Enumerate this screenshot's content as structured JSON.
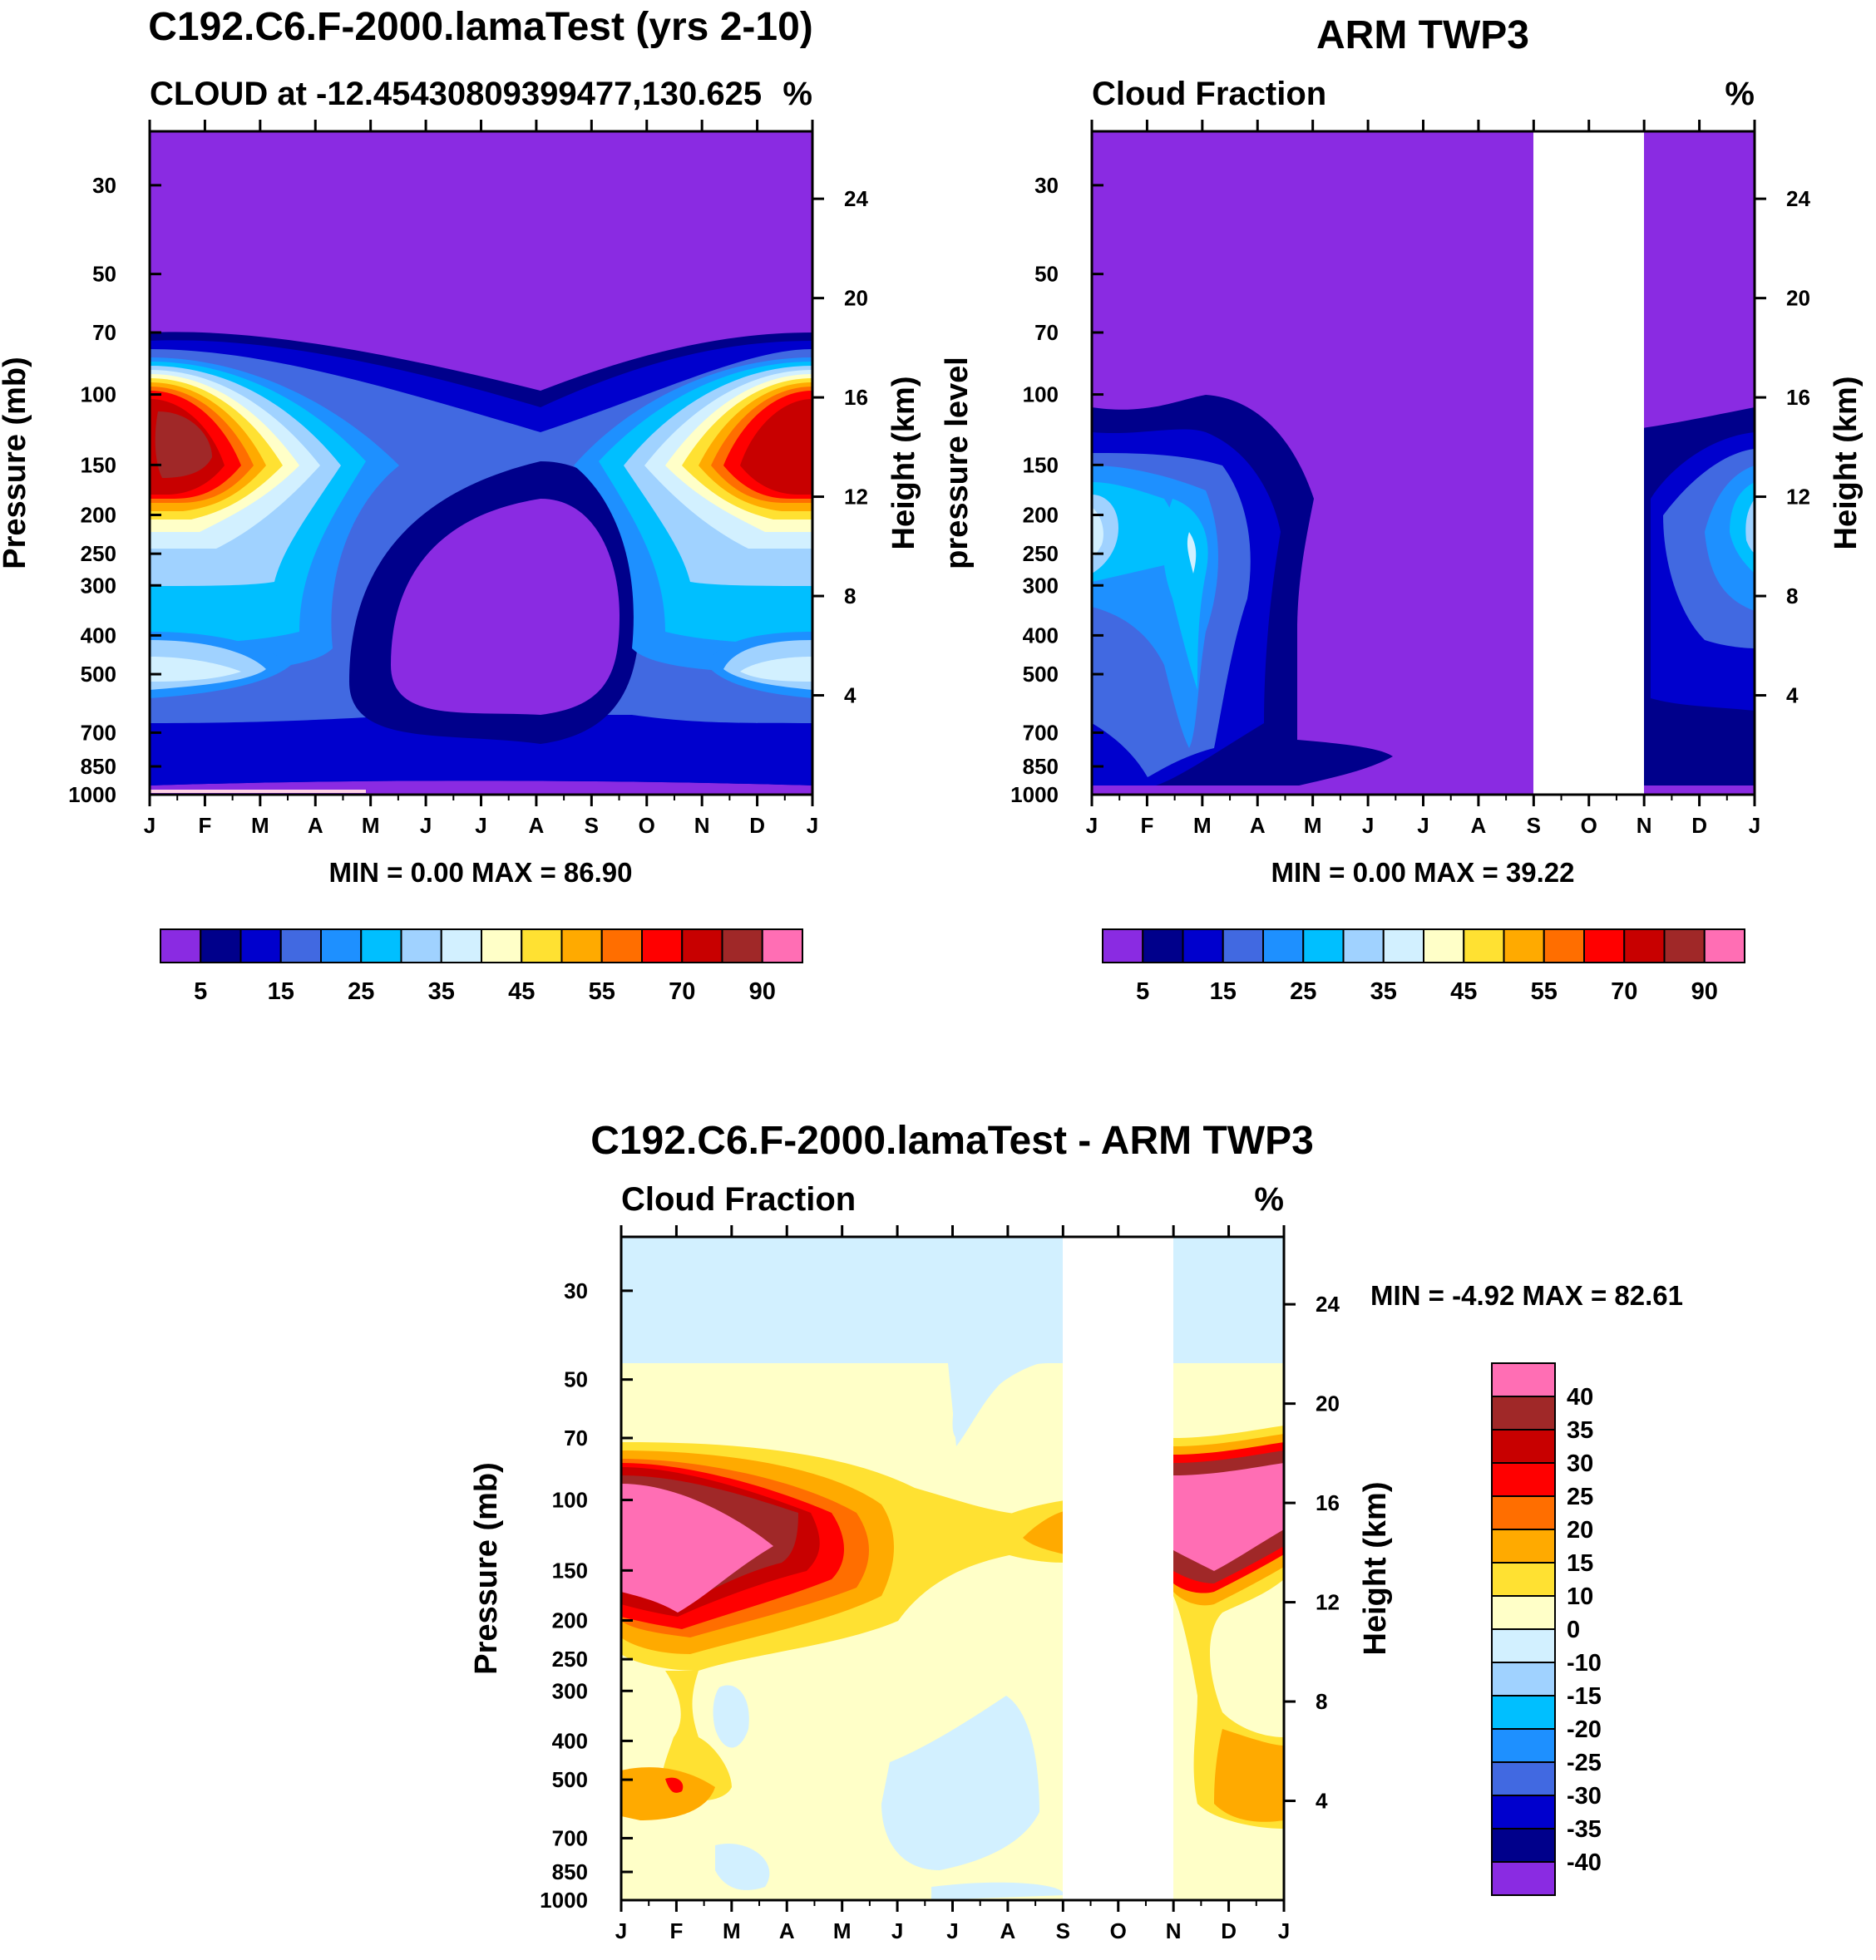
{
  "chart_data": [
    {
      "type": "heatmap",
      "title": "C192.C6.F-2000.lamaTest (yrs 2-10)",
      "subtitle_left": "CLOUD at -12.45430809399477,130.625",
      "subtitle_right": "%",
      "xlabel": "",
      "ylabel": "Pressure (mb)",
      "ylabel_right": "Height (km)",
      "x_ticks": [
        "J",
        "F",
        "M",
        "A",
        "M",
        "J",
        "J",
        "A",
        "S",
        "O",
        "N",
        "D",
        "J"
      ],
      "y_ticks": [
        "30",
        "50",
        "70",
        "100",
        "150",
        "200",
        "250",
        "300",
        "400",
        "500",
        "700",
        "850",
        "1000"
      ],
      "y_ticks_right": [
        "24",
        "20",
        "16",
        "12",
        "8",
        "4"
      ],
      "stats": "MIN =   0.00 MAX =  86.90",
      "colorbar_labels": [
        "5",
        "15",
        "25",
        "35",
        "45",
        "55",
        "70",
        "90"
      ],
      "colors": [
        "#8a2be2",
        "#00008b",
        "#0000cd",
        "#4169e1",
        "#1e90ff",
        "#00bfff",
        "#a0d2ff",
        "#d2f0ff",
        "#ffffc8",
        "#ffe132",
        "#ffaa00",
        "#ff6e00",
        "#ff0000",
        "#c80000",
        "#a02828",
        "#ff6eb4"
      ],
      "min": 0.0,
      "max": 86.9
    },
    {
      "type": "heatmap",
      "title": "ARM TWP3",
      "subtitle_left": "Cloud Fraction",
      "subtitle_right": "%",
      "ylabel": "pressure level",
      "ylabel_right": "Height (km)",
      "x_ticks": [
        "J",
        "F",
        "M",
        "A",
        "M",
        "J",
        "J",
        "A",
        "S",
        "O",
        "N",
        "D",
        "J"
      ],
      "y_ticks": [
        "30",
        "50",
        "70",
        "100",
        "150",
        "200",
        "250",
        "300",
        "400",
        "500",
        "700",
        "850",
        "1000"
      ],
      "y_ticks_right": [
        "24",
        "20",
        "16",
        "12",
        "8",
        "4"
      ],
      "stats": "MIN =   0.00 MAX =  39.22",
      "colorbar_labels": [
        "5",
        "15",
        "25",
        "35",
        "45",
        "55",
        "70",
        "90"
      ],
      "min": 0.0,
      "max": 39.22,
      "missing_months": [
        "S",
        "O"
      ]
    },
    {
      "type": "heatmap",
      "title": "C192.C6.F-2000.lamaTest - ARM TWP3",
      "subtitle_left": "Cloud Fraction",
      "subtitle_right": "%",
      "ylabel": "Pressure (mb)",
      "ylabel_right": "Height (km)",
      "x_ticks": [
        "J",
        "F",
        "M",
        "A",
        "M",
        "J",
        "J",
        "A",
        "S",
        "O",
        "N",
        "D",
        "J"
      ],
      "y_ticks": [
        "30",
        "50",
        "70",
        "100",
        "150",
        "200",
        "250",
        "300",
        "400",
        "500",
        "700",
        "850",
        "1000"
      ],
      "y_ticks_right": [
        "24",
        "20",
        "16",
        "12",
        "8",
        "4"
      ],
      "stats": "MIN =  -4.92 MAX =  82.61",
      "colorbar_labels": [
        "40",
        "35",
        "30",
        "25",
        "20",
        "15",
        "10",
        "0",
        "-10",
        "-15",
        "-20",
        "-25",
        "-30",
        "-35",
        "-40"
      ],
      "colors": [
        "#ff6eb4",
        "#a02828",
        "#c80000",
        "#ff0000",
        "#ff6e00",
        "#ffaa00",
        "#ffe132",
        "#ffffc8",
        "#d2f0ff",
        "#a0d2ff",
        "#00bfff",
        "#1e90ff",
        "#4169e1",
        "#0000cd",
        "#00008b",
        "#8a2be2"
      ],
      "min": -4.92,
      "max": 82.61,
      "missing_months": [
        "S",
        "O"
      ]
    }
  ]
}
